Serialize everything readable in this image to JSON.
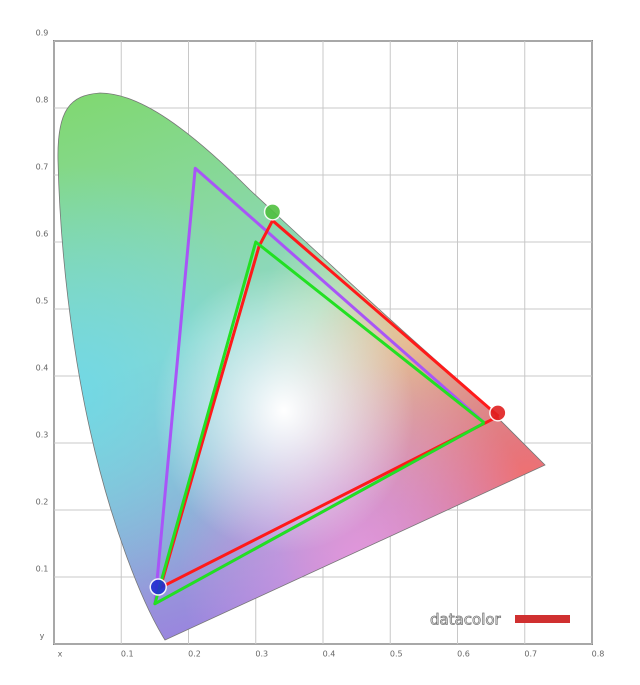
{
  "chart_data": {
    "type": "line",
    "xlim": [
      0,
      0.8
    ],
    "ylim": [
      0,
      0.9
    ],
    "xticks": [
      {
        "value": 0,
        "label": "x"
      },
      0.1,
      0.2,
      0.3,
      0.4,
      0.5,
      0.6,
      0.7,
      0.8
    ],
    "yticks": [
      {
        "value": 0,
        "label": "y"
      },
      0.1,
      0.2,
      0.3,
      0.4,
      0.5,
      0.6,
      0.7,
      0.8,
      0.9
    ],
    "grid": true,
    "watermark": "datacolor",
    "series": [
      {
        "mode": "line",
        "color": "#a855f7",
        "x": [
          0.64,
          0.21,
          0.15,
          0.64
        ],
        "values": [
          0.33,
          0.71,
          0.06,
          0.33
        ]
      },
      {
        "mode": "line",
        "color": "#ff1a1a",
        "x": [
          0.661,
          0.325,
          0.305,
          0.158,
          0.661
        ],
        "values": [
          0.34,
          0.632,
          0.594,
          0.084,
          0.34
        ]
      },
      {
        "mode": "line",
        "color": "#22e022",
        "x": [
          0.64,
          0.3,
          0.15,
          0.64
        ],
        "values": [
          0.33,
          0.6,
          0.06,
          0.33
        ]
      },
      {
        "mode": "markers",
        "colors": [
          "#e02020",
          "#50c040",
          "#2030d0"
        ],
        "x": [
          0.66,
          0.325,
          0.155
        ],
        "values": [
          0.345,
          0.645,
          0.085
        ]
      }
    ]
  }
}
